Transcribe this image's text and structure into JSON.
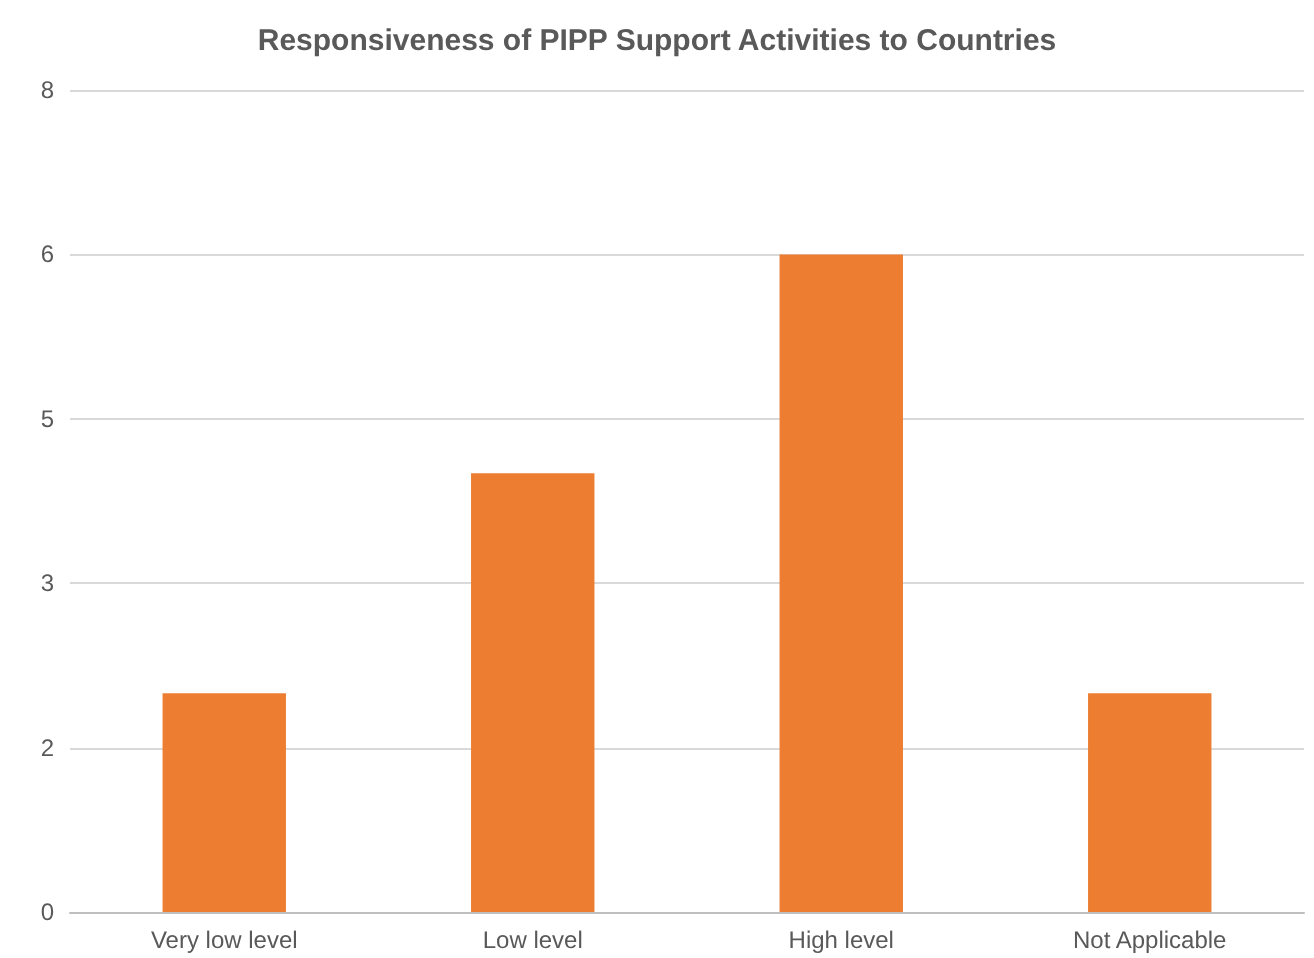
{
  "chart_data": {
    "type": "bar",
    "title": "Responsiveness of PIPP Support Activities to Countries",
    "categories": [
      "Very low level",
      "Low level",
      "High level",
      "Not Applicable"
    ],
    "values": [
      2.13,
      4.27,
      6.4,
      2.13
    ],
    "color": "#ed7d31",
    "ylim": [
      0,
      8
    ],
    "yticks": [
      0,
      {
        "value": 1.6,
        "label": "2"
      },
      {
        "value": 3.2,
        "label": "3"
      },
      {
        "value": 4.8,
        "label": "5"
      },
      {
        "value": 6.4,
        "label": "6"
      },
      8
    ],
    "grid": true
  }
}
